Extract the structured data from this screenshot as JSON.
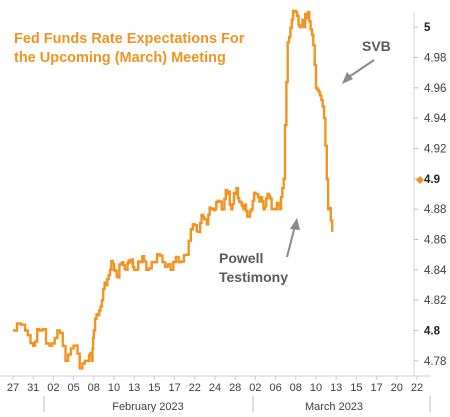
{
  "chart_data": {
    "type": "line",
    "title_lines": [
      "Fed Funds Rate Expectations For",
      "the Upcoming (March) Meeting"
    ],
    "xlabel": "",
    "ylabel": "",
    "ylim": [
      4.77,
      5.01
    ],
    "yticks": [
      "5",
      "4.98",
      "4.96",
      "4.94",
      "4.92",
      "4.9",
      "4.88",
      "4.86",
      "4.84",
      "4.82",
      "4.8",
      "4.78"
    ],
    "ytick_values": [
      5.0,
      4.98,
      4.96,
      4.94,
      4.92,
      4.9,
      4.88,
      4.86,
      4.84,
      4.82,
      4.8,
      4.78
    ],
    "ytick_bold": [
      "5",
      "4.9",
      "4.8"
    ],
    "xticks": [
      "27",
      "31",
      "02",
      "05",
      "08",
      "10",
      "13",
      "15",
      "17",
      "22",
      "24",
      "28",
      "02",
      "06",
      "08",
      "10",
      "13",
      "15",
      "17",
      "20",
      "22"
    ],
    "months": [
      "February 2023",
      "March 2023"
    ],
    "line_color": "#f39322",
    "last_value": 4.9,
    "annotations": [
      {
        "text_lines": [
          "SVB"
        ]
      },
      {
        "text_lines": [
          "Powell",
          "Testimony"
        ]
      }
    ],
    "series": [
      {
        "points": [
          [
            0,
            4.8
          ],
          [
            0.6,
            4.8
          ],
          [
            1.0,
            4.79
          ],
          [
            1.3,
            4.8
          ],
          [
            1.8,
            4.79
          ],
          [
            2.2,
            4.8
          ],
          [
            2.6,
            4.78
          ],
          [
            3.0,
            4.79
          ],
          [
            3.3,
            4.775
          ],
          [
            3.7,
            4.78
          ],
          [
            3.9,
            4.78
          ],
          [
            4.0,
            4.8
          ],
          [
            4.2,
            4.81
          ],
          [
            4.4,
            4.82
          ],
          [
            4.6,
            4.83
          ],
          [
            4.8,
            4.84
          ],
          [
            5.0,
            4.84
          ],
          [
            5.2,
            4.835
          ],
          [
            5.4,
            4.845
          ],
          [
            5.6,
            4.84
          ],
          [
            5.8,
            4.845
          ],
          [
            6.0,
            4.84
          ],
          [
            6.3,
            4.845
          ],
          [
            6.6,
            4.84
          ],
          [
            7.0,
            4.845
          ],
          [
            7.4,
            4.845
          ],
          [
            7.8,
            4.84
          ],
          [
            8.2,
            4.845
          ],
          [
            8.6,
            4.85
          ],
          [
            8.9,
            4.87
          ],
          [
            9.2,
            4.865
          ],
          [
            9.4,
            4.875
          ],
          [
            9.6,
            4.87
          ],
          [
            9.8,
            4.88
          ],
          [
            10.0,
            4.88
          ],
          [
            10.2,
            4.885
          ],
          [
            10.4,
            4.88
          ],
          [
            10.6,
            4.89
          ],
          [
            10.8,
            4.88
          ],
          [
            11.0,
            4.89
          ],
          [
            11.2,
            4.885
          ],
          [
            11.4,
            4.88
          ],
          [
            11.6,
            4.875
          ],
          [
            11.8,
            4.88
          ],
          [
            12.0,
            4.89
          ],
          [
            12.2,
            4.885
          ],
          [
            12.4,
            4.88
          ],
          [
            12.6,
            4.89
          ],
          [
            12.8,
            4.88
          ],
          [
            13.0,
            4.88
          ],
          [
            13.2,
            4.88
          ],
          [
            13.4,
            4.9
          ],
          [
            13.6,
            4.99
          ],
          [
            13.8,
            5.005
          ],
          [
            14.0,
            5.01
          ],
          [
            14.2,
            5.0
          ],
          [
            14.4,
            5.0
          ],
          [
            14.6,
            5.01
          ],
          [
            14.8,
            4.995
          ],
          [
            15.0,
            4.96
          ],
          [
            15.2,
            4.955
          ],
          [
            15.4,
            4.94
          ],
          [
            15.6,
            4.88
          ],
          [
            15.8,
            4.865
          ]
        ]
      }
    ]
  }
}
